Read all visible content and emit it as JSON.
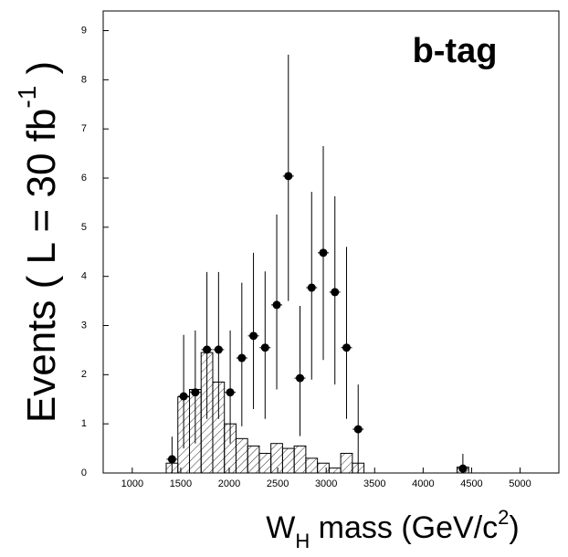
{
  "chart_data": {
    "type": "histogram",
    "ylabel": {
      "text": "Events ( L = 30 fb",
      "sup": "-1",
      "end": " )"
    },
    "xlabel": {
      "main": "W",
      "sub": "H",
      "mid": " mass (GeV/c",
      "sup": "2",
      "end": ")"
    },
    "annotation": "b-tag",
    "annotation_color": "#e8000b",
    "xlim": [
      700,
      5400
    ],
    "ylim": [
      0,
      9.4
    ],
    "xticks": [
      1000,
      1500,
      2000,
      2500,
      3000,
      3500,
      4000,
      4500,
      5000
    ],
    "yticks": [
      0,
      1,
      2,
      3,
      4,
      5,
      6,
      7,
      8,
      9
    ],
    "bins": [
      1350,
      1470,
      1590,
      1710,
      1830,
      1950,
      2070,
      2190,
      2310,
      2430,
      2550,
      2670,
      2790,
      2910,
      3030,
      3150,
      3270,
      3390,
      3510,
      3630,
      3750,
      3870,
      3990,
      4110,
      4230,
      4350,
      4470
    ],
    "counts": [
      0.2,
      1.55,
      1.7,
      2.45,
      1.85,
      1.0,
      0.7,
      0.55,
      0.4,
      0.6,
      0.5,
      0.55,
      0.3,
      0.2,
      0.1,
      0.4,
      0.2,
      0,
      0,
      0,
      0,
      0,
      0,
      0,
      0,
      0.12
    ],
    "hatch": true,
    "points": {
      "type": "errorbar",
      "color": "#000000",
      "x": [
        1410,
        1530,
        1650,
        1770,
        1890,
        2010,
        2130,
        2250,
        2370,
        2490,
        2610,
        2730,
        2850,
        2970,
        3090,
        3210,
        3330,
        4410
      ],
      "values": [
        0.28,
        1.56,
        1.64,
        2.51,
        2.51,
        1.64,
        2.34,
        2.79,
        2.55,
        3.42,
        6.04,
        1.93,
        3.77,
        4.48,
        3.68,
        2.55,
        0.89,
        0.09
      ],
      "low": [
        0,
        0.5,
        0.6,
        1.1,
        1.1,
        0.6,
        0.95,
        1.3,
        1.1,
        1.7,
        3.5,
        0.75,
        1.9,
        2.3,
        1.8,
        1.1,
        0,
        0
      ],
      "high": [
        0.74,
        2.81,
        2.9,
        4.09,
        4.09,
        2.9,
        3.87,
        4.48,
        4.1,
        5.26,
        8.51,
        3.4,
        5.72,
        6.65,
        5.63,
        4.6,
        1.8,
        0.39
      ]
    }
  }
}
